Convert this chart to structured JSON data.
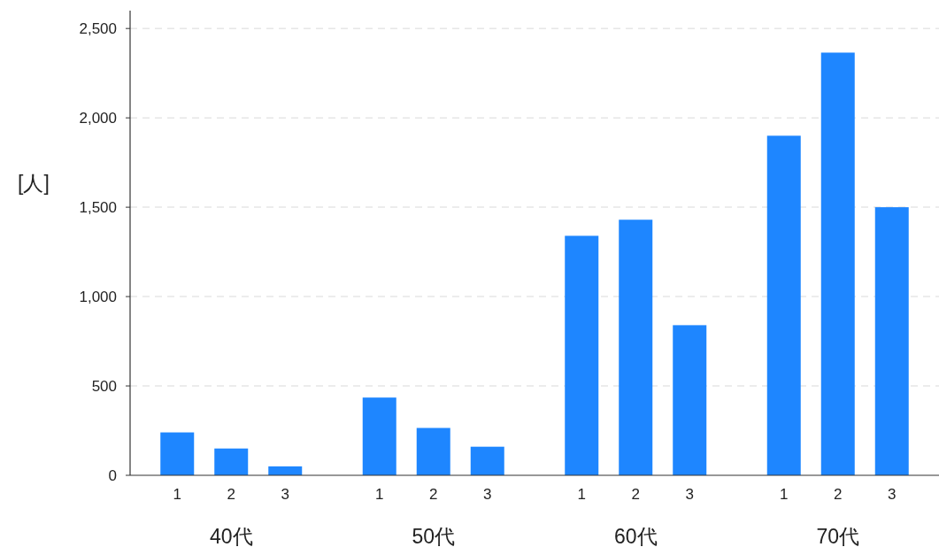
{
  "chart_data": {
    "type": "bar",
    "ylabel": "[人]",
    "categories": [
      "40代",
      "50代",
      "60代",
      "70代"
    ],
    "series": [
      {
        "name": "1",
        "color": "#1e86ff",
        "values": [
          240,
          435,
          1340,
          1900
        ]
      },
      {
        "name": "2",
        "color": "#1e86ff",
        "values": [
          150,
          265,
          1430,
          2365
        ]
      },
      {
        "name": "3",
        "color": "#1e86ff",
        "values": [
          50,
          160,
          840,
          1500
        ]
      }
    ],
    "ylim": [
      0,
      2600
    ],
    "yticks": [
      {
        "value": 0,
        "label": "0"
      },
      {
        "value": 500,
        "label": "500"
      },
      {
        "value": 1000,
        "label": "1,000"
      },
      {
        "value": 1500,
        "label": "1,500"
      },
      {
        "value": 2000,
        "label": "2,000"
      },
      {
        "value": 2500,
        "label": "2,500"
      }
    ],
    "grid": "y",
    "legend": false
  }
}
